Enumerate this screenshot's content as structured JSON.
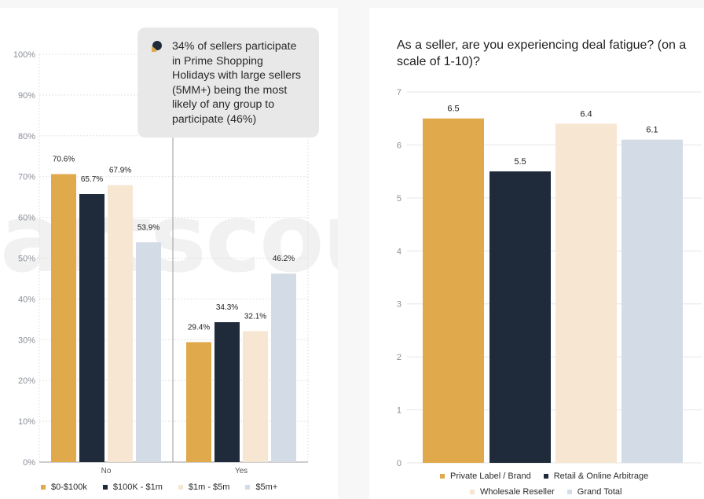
{
  "watermark_text": "artscout",
  "callout": {
    "text": "34% of sellers participate in Prime Shopping Holidays with large sellers (5MM+) being the most likely of any group to participate (46%)",
    "icon": "chat-bubble-icon"
  },
  "colors": {
    "gold": "#e0a94c",
    "navy": "#1f2b3a",
    "cream": "#f7e6d2",
    "lightblue": "#d3dce6"
  },
  "chart_data": [
    {
      "type": "bar",
      "title": "",
      "xlabel": "",
      "ylabel": "",
      "categories": [
        "No",
        "Yes"
      ],
      "ylim": [
        0,
        100
      ],
      "yticks": [
        "0%",
        "10%",
        "20%",
        "30%",
        "40%",
        "50%",
        "60%",
        "70%",
        "80%",
        "90%",
        "100%"
      ],
      "series": [
        {
          "name": "$0-$100k",
          "values": [
            70.6,
            29.4
          ],
          "labels": [
            "70.6%",
            "29.4%"
          ],
          "color": "#e0a94c"
        },
        {
          "name": "$100K - $1m",
          "values": [
            65.7,
            34.3
          ],
          "labels": [
            "65.7%",
            "34.3%"
          ],
          "color": "#1f2b3a"
        },
        {
          "name": "$1m - $5m",
          "values": [
            67.9,
            32.1
          ],
          "labels": [
            "67.9%",
            "32.1%"
          ],
          "color": "#f7e6d2"
        },
        {
          "name": "$5m+",
          "values": [
            53.9,
            46.2
          ],
          "labels": [
            "53.9%",
            "46.2%"
          ],
          "color": "#d3dce6"
        }
      ],
      "grid": true,
      "legend": "bottom"
    },
    {
      "type": "bar",
      "title": "As a seller, are you experiencing deal fatigue? (on a scale of 1-10)?",
      "xlabel": "",
      "ylabel": "",
      "categories": [
        "Private Label / Brand",
        "Retail & Online Arbitrage",
        "Wholesale Reseller",
        "Grand Total"
      ],
      "values": [
        6.5,
        5.5,
        6.4,
        6.1
      ],
      "labels": [
        "6.5",
        "5.5",
        "6.4",
        "6.1"
      ],
      "colors": [
        "#e0a94c",
        "#1f2b3a",
        "#f7e6d2",
        "#d3dce6"
      ],
      "ylim": [
        0,
        7
      ],
      "yticks": [
        "0",
        "1",
        "2",
        "3",
        "4",
        "5",
        "6",
        "7"
      ],
      "grid": true,
      "legend": "bottom"
    }
  ]
}
